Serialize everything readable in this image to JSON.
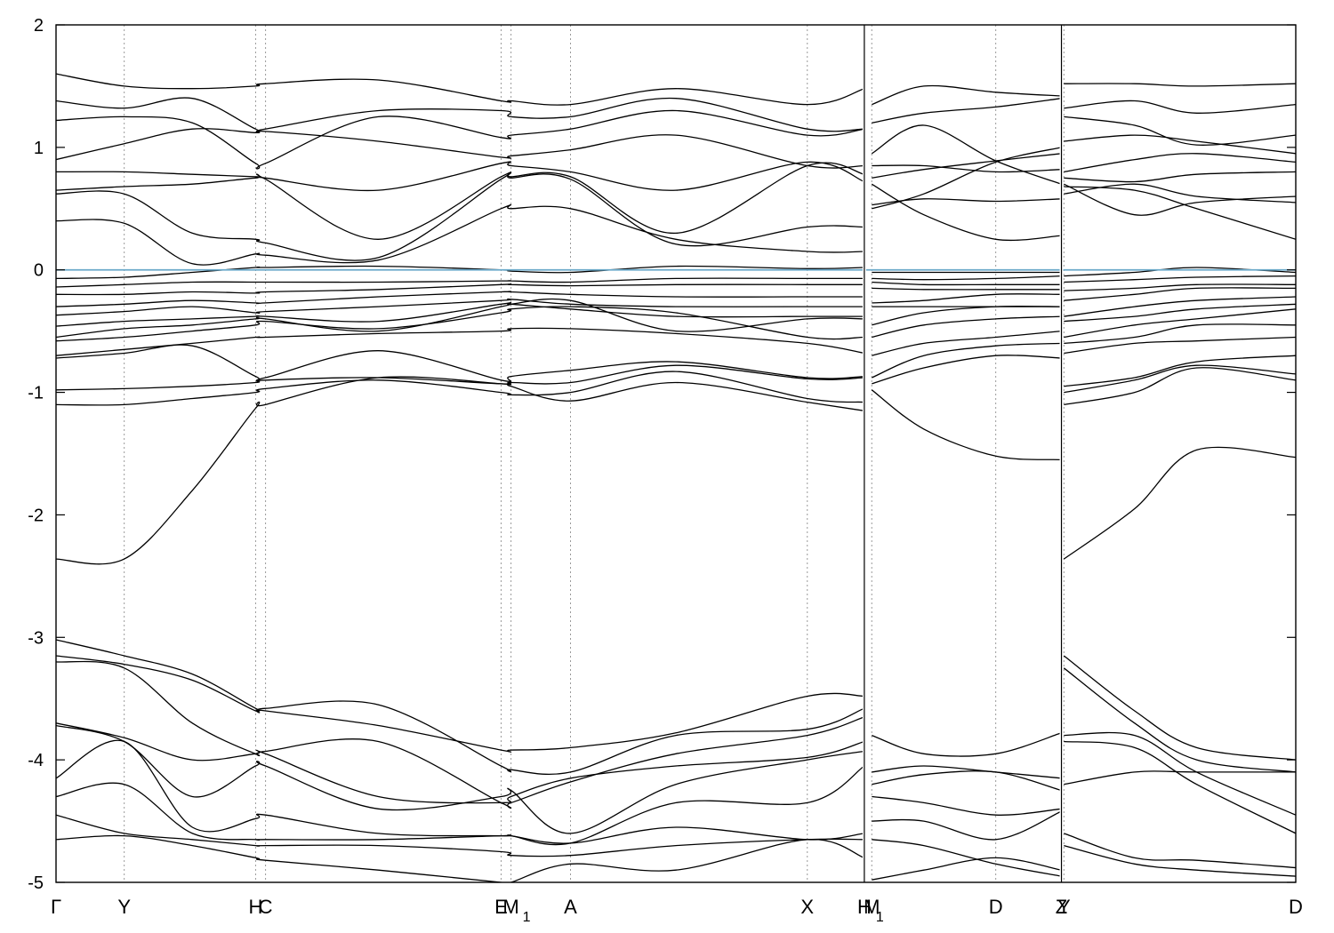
{
  "chart_data": {
    "type": "line",
    "title": "",
    "xlabel": "",
    "ylabel": "",
    "ylim": [
      -5,
      2
    ],
    "grid": "vertical dotted lines at k-points",
    "y_ticks": [
      {
        "value": -5,
        "label": "-5"
      },
      {
        "value": -4,
        "label": "-4"
      },
      {
        "value": -3,
        "label": "-3"
      },
      {
        "value": -2,
        "label": "-2"
      },
      {
        "value": -1,
        "label": "-1"
      },
      {
        "value": 0,
        "label": "0"
      },
      {
        "value": 1,
        "label": "1"
      },
      {
        "value": 2,
        "label": "2"
      }
    ],
    "xlim": [
      0,
      1
    ],
    "kpoints": [
      {
        "x": 0.0,
        "label": "Γ",
        "sub": ""
      },
      {
        "x": 0.055,
        "label": "Y",
        "sub": ""
      },
      {
        "x": 0.161,
        "label": "H",
        "sub": ""
      },
      {
        "x": 0.169,
        "label": "C",
        "sub": ""
      },
      {
        "x": 0.359,
        "label": "E",
        "sub": ""
      },
      {
        "x": 0.367,
        "label": "M",
        "sub": "1"
      },
      {
        "x": 0.415,
        "label": "A",
        "sub": ""
      },
      {
        "x": 0.606,
        "label": "X",
        "sub": ""
      },
      {
        "x": 0.652,
        "label": "H",
        "sub": "1"
      },
      {
        "x": 0.658,
        "label": "M",
        "sub": ""
      },
      {
        "x": 0.758,
        "label": "D",
        "sub": ""
      },
      {
        "x": 0.811,
        "label": "Z",
        "sub": ""
      },
      {
        "x": 0.813,
        "label": "Y",
        "sub": ""
      },
      {
        "x": 1.0,
        "label": "D",
        "sub": ""
      }
    ],
    "panel_breaks": [
      0.652,
      0.811
    ],
    "fermi_level": {
      "value": 0,
      "color": "#6aa9c9"
    },
    "band_color": "#000000",
    "segments": [
      {
        "name": "Γ–H1",
        "x": [
          0.0,
          0.055,
          0.11,
          0.161,
          0.169,
          0.26,
          0.359,
          0.367,
          0.415,
          0.5,
          0.606,
          0.652
        ],
        "bands": [
          [
            -2.36,
            -2.36,
            -1.8,
            -1.13,
            -1.1,
            -0.88,
            -0.93,
            -0.95,
            -1.07,
            -0.92,
            -1.08,
            -1.15
          ],
          [
            -1.1,
            -1.1,
            -1.05,
            -1.0,
            -0.97,
            -0.9,
            -1.0,
            -1.02,
            -1.0,
            -0.83,
            -1.05,
            -1.08
          ],
          [
            -0.98,
            -0.97,
            -0.95,
            -0.92,
            -0.9,
            -0.88,
            -0.93,
            -0.92,
            -0.92,
            -0.78,
            -0.89,
            -0.88
          ],
          [
            -0.72,
            -0.68,
            -0.62,
            -0.87,
            -0.88,
            -0.66,
            -0.9,
            -0.87,
            -0.82,
            -0.75,
            -0.88,
            -0.87
          ],
          [
            -0.7,
            -0.65,
            -0.6,
            -0.55,
            -0.55,
            -0.52,
            -0.5,
            -0.48,
            -0.48,
            -0.52,
            -0.6,
            -0.68
          ],
          [
            -0.58,
            -0.55,
            -0.5,
            -0.45,
            -0.42,
            -0.48,
            -0.35,
            -0.32,
            -0.3,
            -0.35,
            -0.55,
            -0.55
          ],
          [
            -0.55,
            -0.48,
            -0.45,
            -0.4,
            -0.4,
            -0.5,
            -0.3,
            -0.28,
            -0.25,
            -0.5,
            -0.4,
            -0.4
          ],
          [
            -0.46,
            -0.42,
            -0.4,
            -0.38,
            -0.38,
            -0.42,
            -0.28,
            -0.28,
            -0.32,
            -0.38,
            -0.38,
            -0.38
          ],
          [
            -0.37,
            -0.34,
            -0.3,
            -0.35,
            -0.34,
            -0.3,
            -0.25,
            -0.24,
            -0.28,
            -0.3,
            -0.3,
            -0.3
          ],
          [
            -0.3,
            -0.28,
            -0.25,
            -0.27,
            -0.27,
            -0.22,
            -0.18,
            -0.18,
            -0.2,
            -0.22,
            -0.22,
            -0.22
          ],
          [
            -0.2,
            -0.2,
            -0.18,
            -0.19,
            -0.18,
            -0.16,
            -0.12,
            -0.12,
            -0.13,
            -0.12,
            -0.12,
            -0.12
          ],
          [
            -0.14,
            -0.12,
            -0.1,
            -0.1,
            -0.1,
            -0.1,
            -0.09,
            -0.09,
            -0.1,
            -0.07,
            -0.07,
            -0.07
          ],
          [
            -0.07,
            -0.06,
            -0.02,
            0.02,
            0.02,
            0.03,
            0.0,
            -0.01,
            -0.02,
            0.03,
            0.01,
            0.02
          ],
          [
            0.4,
            0.38,
            0.05,
            0.13,
            0.12,
            0.08,
            0.5,
            0.5,
            0.5,
            0.25,
            0.15,
            0.15
          ],
          [
            0.62,
            0.62,
            0.3,
            0.25,
            0.22,
            0.1,
            0.74,
            0.75,
            0.74,
            0.21,
            0.35,
            0.35
          ],
          [
            0.65,
            0.68,
            0.7,
            0.75,
            0.74,
            0.25,
            0.76,
            0.76,
            0.76,
            0.3,
            0.85,
            0.78
          ],
          [
            0.8,
            0.8,
            0.78,
            0.76,
            0.75,
            0.65,
            0.87,
            0.85,
            0.8,
            0.65,
            0.88,
            0.72
          ],
          [
            0.9,
            1.03,
            1.15,
            1.12,
            1.13,
            1.05,
            0.92,
            0.93,
            0.98,
            1.1,
            0.85,
            0.85
          ],
          [
            1.22,
            1.25,
            1.2,
            0.87,
            0.87,
            1.25,
            1.08,
            1.1,
            1.15,
            1.3,
            1.1,
            1.15
          ],
          [
            1.38,
            1.32,
            1.4,
            1.15,
            1.15,
            1.3,
            1.3,
            1.25,
            1.25,
            1.4,
            1.15,
            1.15
          ],
          [
            1.6,
            1.5,
            1.48,
            1.5,
            1.52,
            1.55,
            1.38,
            1.38,
            1.35,
            1.48,
            1.35,
            1.48
          ],
          [
            -3.02,
            -3.15,
            -3.3,
            -3.58,
            -3.6,
            -3.72,
            -3.92,
            -3.92,
            -3.9,
            -3.78,
            -3.48,
            -3.48
          ],
          [
            -3.15,
            -3.22,
            -3.35,
            -3.6,
            -3.58,
            -3.55,
            -4.05,
            -4.08,
            -4.1,
            -3.8,
            -3.75,
            -3.58
          ],
          [
            -3.2,
            -3.25,
            -3.7,
            -3.95,
            -3.93,
            -3.85,
            -4.35,
            -4.35,
            -4.18,
            -3.95,
            -3.8,
            -3.65
          ],
          [
            -3.7,
            -3.82,
            -4.0,
            -3.95,
            -3.95,
            -4.3,
            -4.35,
            -4.3,
            -4.15,
            -4.05,
            -3.98,
            -3.85
          ],
          [
            -3.72,
            -3.85,
            -4.3,
            -4.05,
            -4.05,
            -4.4,
            -4.3,
            -4.25,
            -4.6,
            -4.2,
            -4.0,
            -3.93
          ],
          [
            -4.15,
            -3.85,
            -4.55,
            -4.48,
            -4.45,
            -4.6,
            -4.62,
            -4.62,
            -4.68,
            -4.35,
            -4.35,
            -4.05
          ],
          [
            -4.3,
            -4.2,
            -4.6,
            -4.65,
            -4.65,
            -4.65,
            -4.62,
            -4.62,
            -4.68,
            -4.55,
            -4.65,
            -4.6
          ],
          [
            -4.45,
            -4.6,
            -4.65,
            -4.7,
            -4.7,
            -4.7,
            -4.75,
            -4.78,
            -4.78,
            -4.7,
            -4.65,
            -4.65
          ],
          [
            -4.65,
            -4.62,
            -4.7,
            -4.8,
            -4.82,
            -4.9,
            -5.0,
            -5.0,
            -4.85,
            -4.9,
            -4.65,
            -4.8
          ]
        ]
      },
      {
        "name": "M–Z",
        "x": [
          0.658,
          0.7,
          0.758,
          0.811
        ],
        "bands": [
          [
            -0.98,
            -1.3,
            -1.52,
            -1.55
          ],
          [
            -0.93,
            -0.8,
            -0.7,
            -0.72
          ],
          [
            -0.88,
            -0.7,
            -0.62,
            -0.6
          ],
          [
            -0.7,
            -0.6,
            -0.55,
            -0.5
          ],
          [
            -0.55,
            -0.45,
            -0.4,
            -0.38
          ],
          [
            -0.45,
            -0.35,
            -0.3,
            -0.3
          ],
          [
            -0.3,
            -0.3,
            -0.3,
            -0.3
          ],
          [
            -0.27,
            -0.25,
            -0.2,
            -0.2
          ],
          [
            -0.15,
            -0.16,
            -0.16,
            -0.16
          ],
          [
            -0.1,
            -0.12,
            -0.12,
            -0.12
          ],
          [
            -0.07,
            -0.08,
            -0.07,
            -0.05
          ],
          [
            -0.02,
            -0.02,
            -0.02,
            -0.02
          ],
          [
            0.5,
            0.62,
            0.88,
            1.0
          ],
          [
            0.53,
            0.58,
            0.56,
            0.58
          ],
          [
            0.7,
            0.45,
            0.25,
            0.28
          ],
          [
            0.75,
            0.82,
            0.89,
            0.95
          ],
          [
            0.85,
            0.85,
            0.8,
            0.82
          ],
          [
            0.95,
            1.18,
            0.89,
            0.7
          ],
          [
            1.2,
            1.28,
            1.33,
            1.4
          ],
          [
            1.35,
            1.5,
            1.45,
            1.42
          ],
          [
            -3.8,
            -3.95,
            -3.95,
            -3.78
          ],
          [
            -4.1,
            -4.05,
            -4.1,
            -4.15
          ],
          [
            -4.2,
            -4.12,
            -4.1,
            -4.25
          ],
          [
            -4.3,
            -4.35,
            -4.45,
            -4.4
          ],
          [
            -4.5,
            -4.5,
            -4.65,
            -4.42
          ],
          [
            -4.65,
            -4.7,
            -4.85,
            -4.95
          ],
          [
            -4.98,
            -4.9,
            -4.8,
            -4.9
          ]
        ]
      },
      {
        "name": "Y–D",
        "x": [
          0.813,
          0.87,
          0.92,
          1.0
        ],
        "bands": [
          [
            -2.36,
            -1.95,
            -1.47,
            -1.53
          ],
          [
            -1.1,
            -1.0,
            -0.8,
            -0.9
          ],
          [
            -1.0,
            -0.9,
            -0.78,
            -0.85
          ],
          [
            -0.95,
            -0.88,
            -0.75,
            -0.7
          ],
          [
            -0.68,
            -0.6,
            -0.58,
            -0.55
          ],
          [
            -0.6,
            -0.55,
            -0.45,
            -0.45
          ],
          [
            -0.55,
            -0.45,
            -0.4,
            -0.32
          ],
          [
            -0.42,
            -0.38,
            -0.32,
            -0.28
          ],
          [
            -0.38,
            -0.3,
            -0.25,
            -0.22
          ],
          [
            -0.25,
            -0.2,
            -0.15,
            -0.15
          ],
          [
            -0.17,
            -0.15,
            -0.12,
            -0.12
          ],
          [
            -0.1,
            -0.08,
            -0.06,
            -0.05
          ],
          [
            -0.05,
            -0.02,
            0.02,
            -0.02
          ],
          [
            0.62,
            0.7,
            0.6,
            0.55
          ],
          [
            0.68,
            0.65,
            0.5,
            0.25
          ],
          [
            0.7,
            0.45,
            0.55,
            0.6
          ],
          [
            0.75,
            0.72,
            0.78,
            0.8
          ],
          [
            0.8,
            0.9,
            0.95,
            0.88
          ],
          [
            1.05,
            1.1,
            1.05,
            0.95
          ],
          [
            1.25,
            1.18,
            1.02,
            1.1
          ],
          [
            1.32,
            1.38,
            1.28,
            1.35
          ],
          [
            1.52,
            1.52,
            1.5,
            1.52
          ],
          [
            -3.15,
            -3.6,
            -3.9,
            -4.0
          ],
          [
            -3.25,
            -3.7,
            -4.0,
            -4.1
          ],
          [
            -3.8,
            -3.8,
            -4.1,
            -4.45
          ],
          [
            -3.85,
            -3.9,
            -4.2,
            -4.6
          ],
          [
            -4.2,
            -4.1,
            -4.1,
            -4.1
          ],
          [
            -4.6,
            -4.8,
            -4.82,
            -4.88
          ],
          [
            -4.7,
            -4.85,
            -4.9,
            -4.95
          ]
        ]
      }
    ]
  }
}
